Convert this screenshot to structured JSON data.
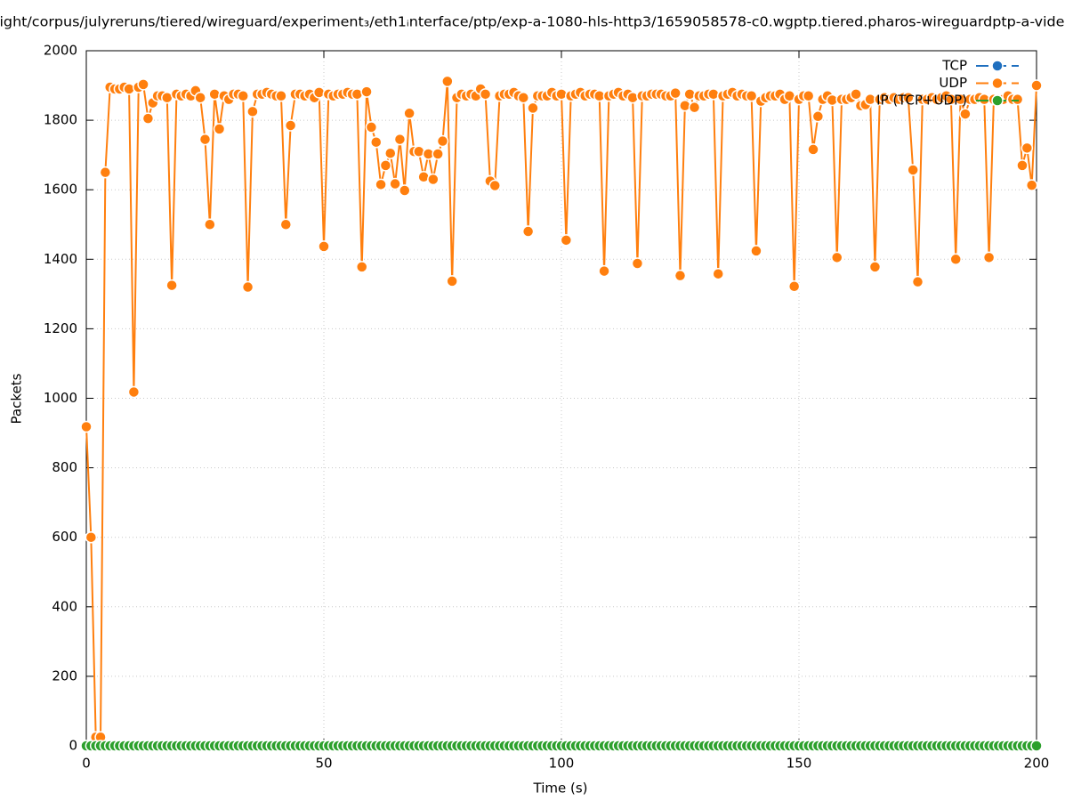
{
  "chart_data": {
    "type": "line",
    "title": "ight/corpus/julyreruns/tiered/wireguard/experiment₃/eth1ᵢnterface/ptp/exp-a-1080-hls-http3/1659058578-c0.wgptp.tiered.pharos-wireguardptp-a-vide",
    "x_label": "Time (s)",
    "y_label": "Packets",
    "xlim": [
      0,
      200
    ],
    "xticks": [
      0,
      50,
      100,
      150,
      200
    ],
    "ylim": [
      0,
      2000
    ],
    "yticks": [
      0,
      200,
      400,
      600,
      800,
      1000,
      1200,
      1400,
      1600,
      1800,
      2000
    ],
    "grid": true,
    "legend": "top-right",
    "x": [
      0,
      1,
      2,
      3,
      4,
      5,
      6,
      7,
      8,
      9,
      10,
      11,
      12,
      13,
      14,
      15,
      16,
      17,
      18,
      19,
      20,
      21,
      22,
      23,
      24,
      25,
      26,
      27,
      28,
      29,
      30,
      31,
      32,
      33,
      34,
      35,
      36,
      37,
      38,
      39,
      40,
      41,
      42,
      43,
      44,
      45,
      46,
      47,
      48,
      49,
      50,
      51,
      52,
      53,
      54,
      55,
      56,
      57,
      58,
      59,
      60,
      61,
      62,
      63,
      64,
      65,
      66,
      67,
      68,
      69,
      70,
      71,
      72,
      73,
      74,
      75,
      76,
      77,
      78,
      79,
      80,
      81,
      82,
      83,
      84,
      85,
      86,
      87,
      88,
      89,
      90,
      91,
      92,
      93,
      94,
      95,
      96,
      97,
      98,
      99,
      100,
      101,
      102,
      103,
      104,
      105,
      106,
      107,
      108,
      109,
      110,
      111,
      112,
      113,
      114,
      115,
      116,
      117,
      118,
      119,
      120,
      121,
      122,
      123,
      124,
      125,
      126,
      127,
      128,
      129,
      130,
      131,
      132,
      133,
      134,
      135,
      136,
      137,
      138,
      139,
      140,
      141,
      142,
      143,
      144,
      145,
      146,
      147,
      148,
      149,
      150,
      151,
      152,
      153,
      154,
      155,
      156,
      157,
      158,
      159,
      160,
      161,
      162,
      163,
      164,
      165,
      166,
      167,
      168,
      169,
      170,
      171,
      172,
      173,
      174,
      175,
      176,
      177,
      178,
      179,
      180,
      181,
      182,
      183,
      184,
      185,
      186,
      187,
      188,
      189,
      190,
      191,
      192,
      193,
      194,
      195,
      196,
      197,
      198,
      199,
      200
    ],
    "series": [
      {
        "name": "TCP",
        "color": "#1f6fbf",
        "values": [
          0,
          0,
          0,
          0,
          0,
          0,
          0,
          0,
          0,
          0,
          0,
          0,
          0,
          0,
          0,
          0,
          0,
          0,
          0,
          0,
          0,
          0,
          0,
          0,
          0,
          0,
          0,
          0,
          0,
          0,
          0,
          0,
          0,
          0,
          0,
          0,
          0,
          0,
          0,
          0,
          0,
          0,
          0,
          0,
          0,
          0,
          0,
          0,
          0,
          0,
          0,
          0,
          0,
          0,
          0,
          0,
          0,
          0,
          0,
          0,
          0,
          0,
          0,
          0,
          0,
          0,
          0,
          0,
          0,
          0,
          0,
          0,
          0,
          0,
          0,
          0,
          0,
          0,
          0,
          0,
          0,
          0,
          0,
          0,
          0,
          0,
          0,
          0,
          0,
          0,
          0,
          0,
          0,
          0,
          0,
          0,
          0,
          0,
          0,
          0,
          0,
          0,
          0,
          0,
          0,
          0,
          0,
          0,
          0,
          0,
          0,
          0,
          0,
          0,
          0,
          0,
          0,
          0,
          0,
          0,
          0,
          0,
          0,
          0,
          0,
          0,
          0,
          0,
          0,
          0,
          0,
          0,
          0,
          0,
          0,
          0,
          0,
          0,
          0,
          0,
          0,
          0,
          0,
          0,
          0,
          0,
          0,
          0,
          0,
          0,
          0,
          0,
          0,
          0,
          0,
          0,
          0,
          0,
          0,
          0,
          0,
          0,
          0,
          0,
          0,
          0,
          0,
          0,
          0,
          0,
          0,
          0,
          0,
          0,
          0,
          0,
          0,
          0,
          0,
          0,
          0,
          0,
          0,
          0,
          0,
          0,
          0,
          0,
          0,
          0,
          0,
          0,
          0,
          0,
          0,
          0,
          0,
          0,
          0,
          0,
          0
        ]
      },
      {
        "name": "UDP",
        "color": "#ff7f0e",
        "values": [
          918,
          600,
          25,
          25,
          1650,
          1895,
          1890,
          1890,
          1895,
          1890,
          1018,
          1895,
          1903,
          1805,
          1850,
          1870,
          1870,
          1865,
          1325,
          1875,
          1870,
          1875,
          1870,
          1885,
          1865,
          1745,
          1500,
          1875,
          1775,
          1870,
          1860,
          1875,
          1875,
          1870,
          1320,
          1825,
          1875,
          1875,
          1880,
          1875,
          1870,
          1870,
          1500,
          1785,
          1875,
          1875,
          1870,
          1875,
          1865,
          1880,
          1437,
          1875,
          1870,
          1875,
          1875,
          1880,
          1875,
          1875,
          1378,
          1882,
          1780,
          1737,
          1615,
          1670,
          1705,
          1617,
          1745,
          1598,
          1820,
          1710,
          1710,
          1637,
          1703,
          1630,
          1703,
          1740,
          1912,
          1337,
          1865,
          1875,
          1870,
          1875,
          1870,
          1890,
          1875,
          1625,
          1612,
          1870,
          1875,
          1875,
          1880,
          1870,
          1865,
          1480,
          1835,
          1870,
          1870,
          1870,
          1880,
          1870,
          1875,
          1455,
          1870,
          1875,
          1880,
          1870,
          1875,
          1875,
          1870,
          1366,
          1870,
          1875,
          1880,
          1870,
          1875,
          1865,
          1388,
          1870,
          1870,
          1875,
          1875,
          1875,
          1870,
          1870,
          1878,
          1353,
          1842,
          1875,
          1837,
          1870,
          1870,
          1875,
          1875,
          1358,
          1870,
          1875,
          1880,
          1870,
          1875,
          1870,
          1870,
          1424,
          1855,
          1865,
          1870,
          1870,
          1875,
          1860,
          1870,
          1322,
          1860,
          1870,
          1870,
          1716,
          1811,
          1860,
          1870,
          1858,
          1405,
          1860,
          1860,
          1865,
          1875,
          1842,
          1845,
          1860,
          1378,
          1860,
          1865,
          1860,
          1865,
          1860,
          1865,
          1865,
          1657,
          1335,
          1860,
          1860,
          1865,
          1860,
          1865,
          1870,
          1860,
          1400,
          1860,
          1818,
          1860,
          1860,
          1865,
          1860,
          1405,
          1860,
          1860,
          1860,
          1870,
          1860,
          1860,
          1670,
          1720,
          1613,
          1900
        ]
      },
      {
        "name": "IP (TCP+UDP)",
        "color": "#2ca02c",
        "values": [
          0,
          0,
          0,
          0,
          0,
          0,
          0,
          0,
          0,
          0,
          0,
          0,
          0,
          0,
          0,
          0,
          0,
          0,
          0,
          0,
          0,
          0,
          0,
          0,
          0,
          0,
          0,
          0,
          0,
          0,
          0,
          0,
          0,
          0,
          0,
          0,
          0,
          0,
          0,
          0,
          0,
          0,
          0,
          0,
          0,
          0,
          0,
          0,
          0,
          0,
          0,
          0,
          0,
          0,
          0,
          0,
          0,
          0,
          0,
          0,
          0,
          0,
          0,
          0,
          0,
          0,
          0,
          0,
          0,
          0,
          0,
          0,
          0,
          0,
          0,
          0,
          0,
          0,
          0,
          0,
          0,
          0,
          0,
          0,
          0,
          0,
          0,
          0,
          0,
          0,
          0,
          0,
          0,
          0,
          0,
          0,
          0,
          0,
          0,
          0,
          0,
          0,
          0,
          0,
          0,
          0,
          0,
          0,
          0,
          0,
          0,
          0,
          0,
          0,
          0,
          0,
          0,
          0,
          0,
          0,
          0,
          0,
          0,
          0,
          0,
          0,
          0,
          0,
          0,
          0,
          0,
          0,
          0,
          0,
          0,
          0,
          0,
          0,
          0,
          0,
          0,
          0,
          0,
          0,
          0,
          0,
          0,
          0,
          0,
          0,
          0,
          0,
          0,
          0,
          0,
          0,
          0,
          0,
          0,
          0,
          0,
          0,
          0,
          0,
          0,
          0,
          0,
          0,
          0,
          0,
          0,
          0,
          0,
          0,
          0,
          0,
          0,
          0,
          0,
          0,
          0,
          0,
          0,
          0,
          0,
          0,
          0,
          0,
          0,
          0,
          0,
          0,
          0,
          0,
          0,
          0,
          0,
          0,
          0,
          0,
          0
        ]
      }
    ]
  }
}
